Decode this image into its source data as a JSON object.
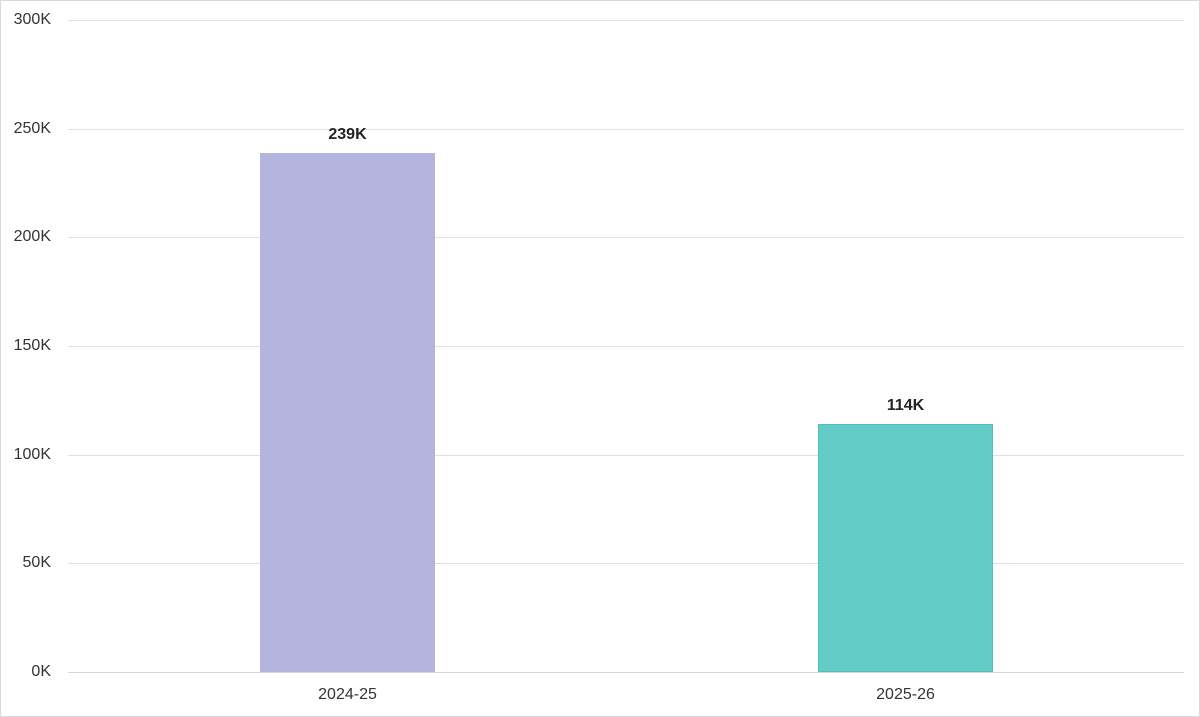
{
  "chart_data": {
    "type": "bar",
    "title": "",
    "xlabel": "",
    "ylabel": "",
    "categories": [
      "2024-25",
      "2025-26"
    ],
    "values": [
      239000,
      114000
    ],
    "data_labels": [
      "239K",
      "114K"
    ],
    "colors": [
      "#b3b5de",
      "#64ccc7"
    ],
    "ylim": [
      0,
      300000
    ],
    "yticks": [
      0,
      50000,
      100000,
      150000,
      200000,
      250000,
      300000
    ],
    "ytick_labels": [
      "0K",
      "50K",
      "100K",
      "150K",
      "200K",
      "250K",
      "300K"
    ],
    "grid": true,
    "legend": null
  },
  "axis": {
    "y_labels": [
      "300K",
      "250K",
      "200K",
      "150K",
      "100K",
      "50K",
      "0K"
    ]
  },
  "bars": [
    {
      "category": "2024-25",
      "label": "239K",
      "color": "#b3b5de"
    },
    {
      "category": "2025-26",
      "label": "114K",
      "color": "#64ccc7"
    }
  ]
}
